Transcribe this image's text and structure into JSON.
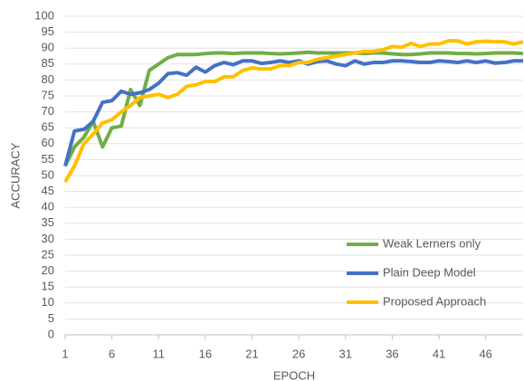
{
  "chart_data": {
    "type": "line",
    "x_label": "EPOCH",
    "y_label": "ACCURACY",
    "x": [
      1,
      2,
      3,
      4,
      5,
      6,
      7,
      8,
      9,
      10,
      11,
      12,
      13,
      14,
      15,
      16,
      17,
      18,
      19,
      20,
      21,
      22,
      23,
      24,
      25,
      26,
      27,
      28,
      29,
      30,
      31,
      32,
      33,
      34,
      35,
      36,
      37,
      38,
      39,
      40,
      41,
      42,
      43,
      44,
      45,
      46,
      47,
      48,
      49,
      50
    ],
    "series": [
      {
        "name": "Weak Lerners only",
        "color": "#70ad47",
        "values": [
          53,
          59,
          62,
          67,
          59,
          65,
          65.5,
          77,
          72,
          83,
          85,
          87,
          88,
          88,
          88,
          88.3,
          88.5,
          88.5,
          88.3,
          88.5,
          88.5,
          88.5,
          88.3,
          88.2,
          88.3,
          88.5,
          88.7,
          88.5,
          88.5,
          88.5,
          88.5,
          88.5,
          88.3,
          88.5,
          88.5,
          88.2,
          88,
          88,
          88.2,
          88.5,
          88.5,
          88.5,
          88.3,
          88.3,
          88.2,
          88.3,
          88.5,
          88.5,
          88.5,
          88.3
        ]
      },
      {
        "name": "Plain Deep Model",
        "color": "#4472c4",
        "values": [
          53,
          64,
          64.5,
          67,
          73,
          73.5,
          76.5,
          75.5,
          76,
          77,
          79,
          82,
          82.3,
          81.5,
          84,
          82.5,
          84.5,
          85.5,
          84.8,
          86,
          86,
          85.2,
          85.5,
          86,
          85.5,
          86,
          85,
          85.8,
          86,
          85,
          84.5,
          86,
          85,
          85.5,
          85.5,
          86,
          86,
          85.8,
          85.5,
          85.5,
          86,
          85.8,
          85.5,
          86,
          85.5,
          86,
          85.3,
          85.5,
          86,
          86
        ]
      },
      {
        "name": "Proposed Approach",
        "color": "#ffc000",
        "values": [
          48,
          53,
          60,
          63,
          66.5,
          67.5,
          70,
          72,
          74.5,
          75,
          75.5,
          74.5,
          75.5,
          78,
          78.5,
          79.5,
          79.5,
          81,
          81,
          83,
          83.8,
          83.5,
          83.5,
          84.5,
          84.5,
          85.5,
          85.5,
          86.5,
          87,
          87.5,
          88,
          88.5,
          89,
          89,
          89.5,
          90.5,
          90.3,
          91.5,
          90.5,
          91.3,
          91.3,
          92.3,
          92.3,
          91.3,
          92,
          92.2,
          92,
          92,
          91.3,
          92
        ]
      }
    ],
    "xlim": [
      1,
      50
    ],
    "xticks": [
      1,
      6,
      11,
      16,
      21,
      26,
      31,
      36,
      41,
      46
    ],
    "ylim": [
      0,
      100
    ],
    "yticks": [
      0,
      5,
      10,
      15,
      20,
      25,
      30,
      35,
      40,
      45,
      50,
      55,
      60,
      65,
      70,
      75,
      80,
      85,
      90,
      95,
      100
    ],
    "grid": true,
    "legend": "lower right"
  }
}
